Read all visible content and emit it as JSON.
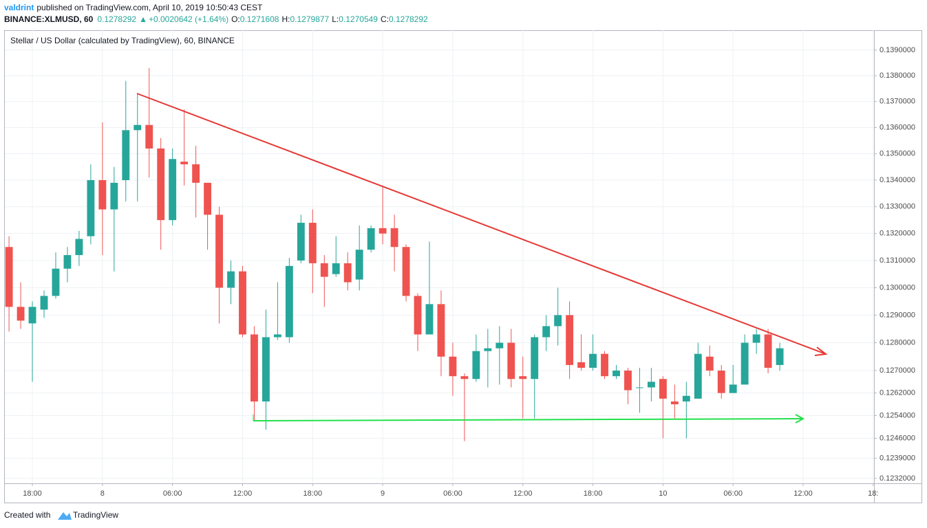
{
  "header": {
    "author": "valdrint",
    "published": "published on TradingView.com, April 10, 2019 10:50:43 CEST",
    "symbol": "BINANCE:XLMUSD, 60",
    "last": "0.1278292",
    "change_arrow": "▲",
    "change": "+0.0020642 (+1.64%)",
    "ohlc": [
      {
        "label": "O:",
        "value": "0.1271608"
      },
      {
        "label": "H:",
        "value": "0.1279877"
      },
      {
        "label": "L:",
        "value": "0.1270549"
      },
      {
        "label": "C:",
        "value": "0.1278292"
      }
    ]
  },
  "footer": {
    "text": "Created with",
    "brand": "TradingView"
  },
  "chart_data": {
    "type": "candlestick",
    "title": "Stellar / US Dollar (calculated by TradingView), 60, BINANCE",
    "up_color": "#26a69a",
    "down_color": "#ef5350",
    "log_scale": true,
    "grid": true,
    "xlim": [
      15.64,
      90.07
    ],
    "ylim": [
      0.12303,
      0.13978
    ],
    "xticks": [
      {
        "value": 18,
        "label": "18:00"
      },
      {
        "value": 24,
        "label": "8"
      },
      {
        "value": 30,
        "label": "06:00"
      },
      {
        "value": 36,
        "label": "12:00"
      },
      {
        "value": 42,
        "label": "18:00"
      },
      {
        "value": 48,
        "label": "9"
      },
      {
        "value": 54,
        "label": "06:00"
      },
      {
        "value": 60,
        "label": "12:00"
      },
      {
        "value": 66,
        "label": "18:00"
      },
      {
        "value": 72,
        "label": "10"
      },
      {
        "value": 78,
        "label": "06:00"
      },
      {
        "value": 84,
        "label": "12:00"
      },
      {
        "value": 90,
        "label": "18:"
      }
    ],
    "yticks": [
      {
        "value": 0.1232,
        "label": "0.1232000"
      },
      {
        "value": 0.1239,
        "label": "0.1239000"
      },
      {
        "value": 0.1246,
        "label": "0.1246000"
      },
      {
        "value": 0.1254,
        "label": "0.1254000"
      },
      {
        "value": 0.1262,
        "label": "0.1262000"
      },
      {
        "value": 0.127,
        "label": "0.1270000"
      },
      {
        "value": 0.128,
        "label": "0.1280000"
      },
      {
        "value": 0.129,
        "label": "0.1290000"
      },
      {
        "value": 0.13,
        "label": "0.1300000"
      },
      {
        "value": 0.131,
        "label": "0.1310000"
      },
      {
        "value": 0.132,
        "label": "0.1320000"
      },
      {
        "value": 0.133,
        "label": "0.1330000"
      },
      {
        "value": 0.134,
        "label": "0.1340000"
      },
      {
        "value": 0.135,
        "label": "0.1350000"
      },
      {
        "value": 0.136,
        "label": "0.1360000"
      },
      {
        "value": 0.137,
        "label": "0.1370000"
      },
      {
        "value": 0.138,
        "label": "0.1380000"
      },
      {
        "value": 0.139,
        "label": "0.1390000"
      }
    ],
    "x": [
      16,
      17,
      18,
      19,
      20,
      21,
      22,
      23,
      24,
      25,
      26,
      27,
      28,
      29,
      30,
      31,
      32,
      33,
      34,
      35,
      36,
      37,
      38,
      39,
      40,
      41,
      42,
      43,
      44,
      45,
      46,
      47,
      48,
      49,
      50,
      51,
      52,
      53,
      54,
      55,
      56,
      57,
      58,
      59,
      60,
      61,
      62,
      63,
      64,
      65,
      66,
      67,
      68,
      69,
      70,
      71,
      72,
      73,
      74,
      75,
      76,
      77,
      78,
      79,
      80,
      81,
      82
    ],
    "open": [
      0.1315,
      0.1293,
      0.1287,
      0.1292,
      0.1297,
      0.1307,
      0.1312,
      0.1319,
      0.134,
      0.1329,
      0.134,
      0.1359,
      0.1361,
      0.1352,
      0.1325,
      0.1347,
      0.1346,
      0.1339,
      0.1327,
      0.13,
      0.1306,
      0.1283,
      0.1259,
      0.1282,
      0.1282,
      0.131,
      0.1324,
      0.1309,
      0.1305,
      0.1309,
      0.1303,
      0.1314,
      0.1322,
      0.1322,
      0.1315,
      0.1297,
      0.1283,
      0.1294,
      0.1275,
      0.1268,
      0.1267,
      0.1277,
      0.1278,
      0.128,
      0.1268,
      0.1267,
      0.1282,
      0.1286,
      0.129,
      0.1273,
      0.1271,
      0.1276,
      0.1268,
      0.127,
      0.1264,
      0.1264,
      0.1267,
      0.1259,
      0.1259,
      0.126,
      0.1275,
      0.127,
      0.1262,
      0.1265,
      0.128,
      0.1283,
      0.1272
    ],
    "high": [
      0.1319,
      0.1302,
      0.1295,
      0.1299,
      0.1313,
      0.1315,
      0.1321,
      0.1346,
      0.1362,
      0.1345,
      0.1378,
      0.1373,
      0.1383,
      0.1356,
      0.1352,
      0.1367,
      0.1353,
      0.1339,
      0.133,
      0.131,
      0.1308,
      0.1286,
      0.1292,
      0.1302,
      0.1311,
      0.1327,
      0.1329,
      0.1312,
      0.1319,
      0.1313,
      0.1323,
      0.1323,
      0.1338,
      0.1327,
      0.1316,
      0.1298,
      0.1317,
      0.1299,
      0.128,
      0.1269,
      0.1283,
      0.1285,
      0.1286,
      0.1285,
      0.1275,
      0.1283,
      0.129,
      0.13,
      0.1295,
      0.1283,
      0.1283,
      0.1277,
      0.1272,
      0.1271,
      0.1271,
      0.1271,
      0.1268,
      0.1265,
      0.1266,
      0.128,
      0.1279,
      0.1272,
      0.1272,
      0.1283,
      0.1285,
      0.1285,
      0.128
    ],
    "low": [
      0.1284,
      0.1285,
      0.1266,
      0.1289,
      0.1296,
      0.1302,
      0.1308,
      0.1316,
      0.1312,
      0.1306,
      0.1332,
      0.1332,
      0.1341,
      0.1314,
      0.1323,
      0.1338,
      0.1326,
      0.1314,
      0.1287,
      0.1294,
      0.1282,
      0.1252,
      0.1249,
      0.1281,
      0.128,
      0.1309,
      0.1298,
      0.1293,
      0.1304,
      0.1299,
      0.1299,
      0.1313,
      0.1316,
      0.1306,
      0.1295,
      0.1277,
      0.1283,
      0.1268,
      0.1261,
      0.1245,
      0.1266,
      0.1264,
      0.1265,
      0.1264,
      0.1253,
      0.1253,
      0.1277,
      0.1279,
      0.1267,
      0.127,
      0.127,
      0.1267,
      0.1267,
      0.1258,
      0.1255,
      0.1259,
      0.1246,
      0.1253,
      0.1246,
      0.126,
      0.1268,
      0.126,
      0.1262,
      0.1265,
      0.1276,
      0.1269,
      0.127
    ],
    "close": [
      0.1293,
      0.1288,
      0.1293,
      0.1297,
      0.1307,
      0.1312,
      0.1318,
      0.134,
      0.1329,
      0.1339,
      0.1359,
      0.1361,
      0.1352,
      0.1325,
      0.1348,
      0.1346,
      0.1339,
      0.1327,
      0.13,
      0.1306,
      0.1283,
      0.1259,
      0.1282,
      0.1283,
      0.1308,
      0.1324,
      0.1309,
      0.1304,
      0.1309,
      0.1302,
      0.1314,
      0.1322,
      0.132,
      0.1315,
      0.1297,
      0.1283,
      0.1294,
      0.1275,
      0.1268,
      0.1267,
      0.1277,
      0.1278,
      0.128,
      0.1267,
      0.1267,
      0.1282,
      0.1286,
      0.129,
      0.1272,
      0.1271,
      0.1276,
      0.1268,
      0.127,
      0.1263,
      0.1264,
      0.1266,
      0.126,
      0.1258,
      0.1261,
      0.1276,
      0.127,
      0.1262,
      0.1265,
      0.128,
      0.1283,
      0.1271,
      0.1278
    ]
  }
}
